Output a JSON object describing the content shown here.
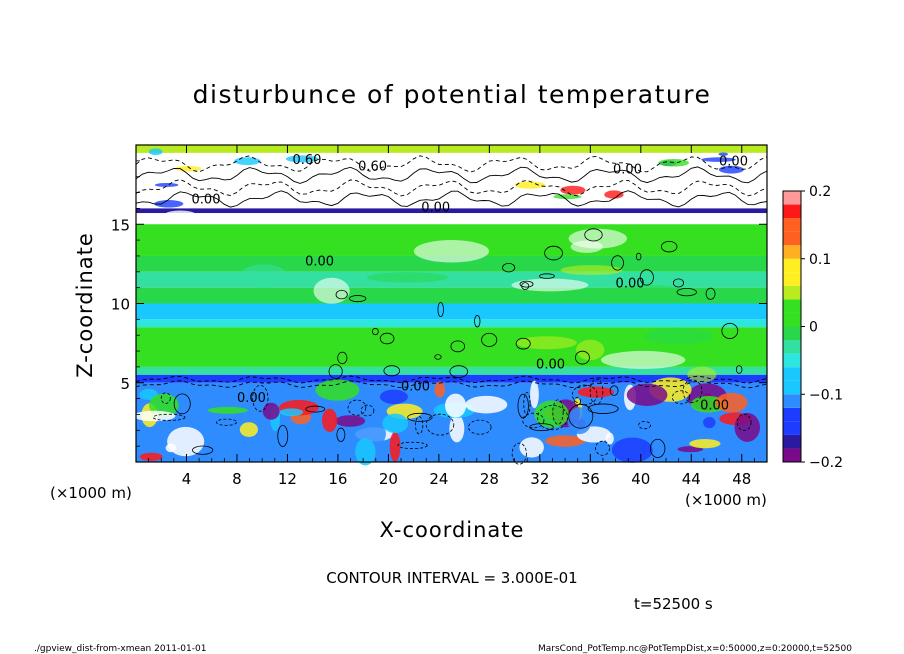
{
  "chart_data": {
    "type": "heatmap",
    "title": "disturbunce of potential temperature",
    "xlabel": "X-coordinate",
    "ylabel": "Z-coordinate",
    "x_unit": "(×1000 m)",
    "y_unit": "(×1000 m)",
    "xlim": [
      0,
      50
    ],
    "ylim": [
      0,
      20
    ],
    "x_ticks": [
      4,
      8,
      12,
      16,
      20,
      24,
      28,
      32,
      36,
      40,
      44,
      48
    ],
    "y_ticks": [
      5,
      10,
      15
    ],
    "colorbar": {
      "range": [
        -0.2,
        0.2
      ],
      "tick_labels": [
        "0.2",
        "0.1",
        "0",
        "−0.1",
        "−0.2"
      ],
      "tick_values": [
        0.2,
        0.1,
        0,
        -0.1,
        -0.2
      ]
    },
    "contour_interval_text": "CONTOUR INTERVAL = 3.000E-01",
    "contour_labels": [
      "0.00",
      "0.60",
      "0.60",
      "0.00",
      "0.00",
      "0.00",
      "0.00",
      "0.00",
      "0.00",
      "0.00",
      "0.00",
      "0.00"
    ],
    "bands": [
      {
        "z0": 19.5,
        "z1": 20.0,
        "value": 0.05
      },
      {
        "z0": 16.0,
        "z1": 19.5,
        "value": 0.0,
        "note": "white"
      },
      {
        "z0": 15.7,
        "z1": 16.0,
        "value": -0.18
      },
      {
        "z0": 15.0,
        "z1": 15.7,
        "value": 0.0,
        "note": "white"
      },
      {
        "z0": 13.0,
        "z1": 15.0,
        "value": 0.03
      },
      {
        "z0": 12.0,
        "z1": 13.0,
        "value": 0.0
      },
      {
        "z0": 11.0,
        "z1": 12.0,
        "value": -0.03
      },
      {
        "z0": 10.0,
        "z1": 11.0,
        "value": 0.0
      },
      {
        "z0": 9.0,
        "z1": 10.0,
        "value": -0.07
      },
      {
        "z0": 8.5,
        "z1": 9.0,
        "value": -0.05
      },
      {
        "z0": 6.0,
        "z1": 8.5,
        "value": 0.02
      },
      {
        "z0": 5.5,
        "z1": 6.0,
        "value": -0.02
      },
      {
        "z0": 5.0,
        "z1": 5.5,
        "value": -0.15
      },
      {
        "z0": 0.0,
        "z1": 5.0,
        "value": -0.12
      }
    ]
  },
  "time_label": "t=52500 s",
  "footer_left": "./gpview_dist-from-xmean  2011-01-01",
  "footer_right": "MarsCond_PotTemp.nc@PotTempDist,x=0:50000,z=0:20000,t=52500"
}
